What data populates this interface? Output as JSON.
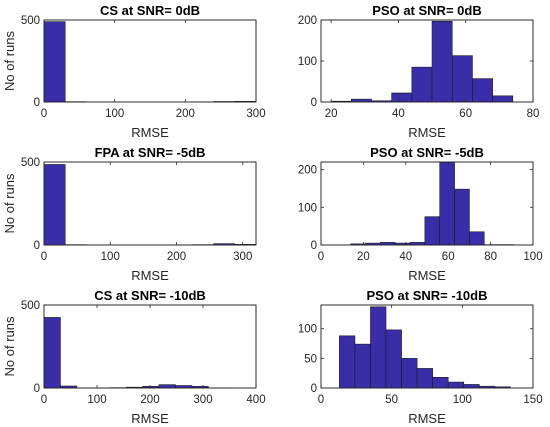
{
  "style": {
    "bar_color": "#3a2ea8"
  },
  "chart_data": [
    {
      "type": "bar",
      "title": "CS at SNR= 0dB",
      "xlabel": "RMSE",
      "ylabel": "No of runs",
      "xlim": [
        0,
        300
      ],
      "ylim": [
        0,
        500
      ],
      "xticks": [
        0,
        100,
        200,
        300
      ],
      "yticks": [
        0,
        500
      ],
      "bins": [
        {
          "x0": 0,
          "x1": 30,
          "value": 490
        },
        {
          "x0": 30,
          "x1": 60,
          "value": 2
        },
        {
          "x0": 60,
          "x1": 90,
          "value": 0
        },
        {
          "x0": 90,
          "x1": 120,
          "value": 0
        },
        {
          "x0": 120,
          "x1": 150,
          "value": 0
        },
        {
          "x0": 150,
          "x1": 180,
          "value": 0
        },
        {
          "x0": 180,
          "x1": 210,
          "value": 0
        },
        {
          "x0": 210,
          "x1": 240,
          "value": 1
        },
        {
          "x0": 240,
          "x1": 270,
          "value": 3
        },
        {
          "x0": 270,
          "x1": 300,
          "value": 4
        }
      ]
    },
    {
      "type": "bar",
      "title": "PSO at SNR= 0dB",
      "xlabel": "RMSE",
      "ylabel": "",
      "xlim": [
        17,
        80
      ],
      "ylim": [
        0,
        200
      ],
      "xticks": [
        20,
        40,
        60,
        80
      ],
      "yticks": [
        0,
        100,
        200
      ],
      "bins": [
        {
          "x0": 20,
          "x1": 26,
          "value": 2
        },
        {
          "x0": 26,
          "x1": 32,
          "value": 7
        },
        {
          "x0": 32,
          "x1": 38,
          "value": 3
        },
        {
          "x0": 38,
          "x1": 44,
          "value": 22
        },
        {
          "x0": 44,
          "x1": 50,
          "value": 85
        },
        {
          "x0": 50,
          "x1": 56,
          "value": 197
        },
        {
          "x0": 56,
          "x1": 62,
          "value": 113
        },
        {
          "x0": 62,
          "x1": 68,
          "value": 57
        },
        {
          "x0": 68,
          "x1": 74,
          "value": 15
        },
        {
          "x0": 74,
          "x1": 78,
          "value": 0
        }
      ]
    },
    {
      "type": "bar",
      "title": "FPA at SNR= -5dB",
      "xlabel": "RMSE",
      "ylabel": "No of runs",
      "xlim": [
        0,
        320
      ],
      "ylim": [
        0,
        500
      ],
      "xticks": [
        0,
        100,
        200,
        300
      ],
      "yticks": [
        0,
        500
      ],
      "bins": [
        {
          "x0": 0,
          "x1": 32,
          "value": 485
        },
        {
          "x0": 32,
          "x1": 64,
          "value": 2
        },
        {
          "x0": 64,
          "x1": 96,
          "value": 0
        },
        {
          "x0": 96,
          "x1": 128,
          "value": 0
        },
        {
          "x0": 128,
          "x1": 160,
          "value": 0
        },
        {
          "x0": 160,
          "x1": 192,
          "value": 0
        },
        {
          "x0": 192,
          "x1": 224,
          "value": 1
        },
        {
          "x0": 224,
          "x1": 256,
          "value": 2
        },
        {
          "x0": 256,
          "x1": 288,
          "value": 8
        },
        {
          "x0": 288,
          "x1": 320,
          "value": 4
        }
      ]
    },
    {
      "type": "bar",
      "title": "PSO at SNR= -5dB",
      "xlabel": "RMSE",
      "ylabel": "",
      "xlim": [
        0,
        100
      ],
      "ylim": [
        0,
        220
      ],
      "xticks": [
        0,
        20,
        40,
        60,
        80,
        100
      ],
      "yticks": [
        0,
        100,
        200
      ],
      "bins": [
        {
          "x0": 14,
          "x1": 21,
          "value": 3
        },
        {
          "x0": 21,
          "x1": 28,
          "value": 5
        },
        {
          "x0": 28,
          "x1": 35,
          "value": 7
        },
        {
          "x0": 35,
          "x1": 42,
          "value": 5
        },
        {
          "x0": 42,
          "x1": 49,
          "value": 7
        },
        {
          "x0": 49,
          "x1": 56,
          "value": 75
        },
        {
          "x0": 56,
          "x1": 63,
          "value": 220
        },
        {
          "x0": 63,
          "x1": 70,
          "value": 148
        },
        {
          "x0": 70,
          "x1": 77,
          "value": 35
        },
        {
          "x0": 77,
          "x1": 84,
          "value": 1
        },
        {
          "x0": 84,
          "x1": 91,
          "value": 1
        }
      ]
    },
    {
      "type": "bar",
      "title": "CS at SNR= -10dB",
      "xlabel": "RMSE",
      "ylabel": "No of runs",
      "xlim": [
        0,
        400
      ],
      "ylim": [
        0,
        500
      ],
      "xticks": [
        0,
        100,
        200,
        300,
        400
      ],
      "yticks": [
        0,
        500
      ],
      "bins": [
        {
          "x0": 0,
          "x1": 31,
          "value": 425
        },
        {
          "x0": 31,
          "x1": 62,
          "value": 12
        },
        {
          "x0": 62,
          "x1": 93,
          "value": 1
        },
        {
          "x0": 93,
          "x1": 124,
          "value": 1
        },
        {
          "x0": 124,
          "x1": 155,
          "value": 2
        },
        {
          "x0": 155,
          "x1": 186,
          "value": 5
        },
        {
          "x0": 186,
          "x1": 217,
          "value": 10
        },
        {
          "x0": 217,
          "x1": 248,
          "value": 20
        },
        {
          "x0": 248,
          "x1": 279,
          "value": 15
        },
        {
          "x0": 279,
          "x1": 310,
          "value": 10
        },
        {
          "x0": 310,
          "x1": 341,
          "value": 1
        }
      ]
    },
    {
      "type": "bar",
      "title": "PSO at SNR= -10dB",
      "xlabel": "RMSE",
      "ylabel": "",
      "xlim": [
        0,
        150
      ],
      "ylim": [
        0,
        140
      ],
      "xticks": [
        0,
        50,
        100,
        150
      ],
      "yticks": [
        0,
        50,
        100
      ],
      "bins": [
        {
          "x0": 13,
          "x1": 24,
          "value": 88
        },
        {
          "x0": 24,
          "x1": 35,
          "value": 74
        },
        {
          "x0": 35,
          "x1": 46,
          "value": 137
        },
        {
          "x0": 46,
          "x1": 57,
          "value": 98
        },
        {
          "x0": 57,
          "x1": 68,
          "value": 50
        },
        {
          "x0": 68,
          "x1": 79,
          "value": 33
        },
        {
          "x0": 79,
          "x1": 90,
          "value": 18
        },
        {
          "x0": 90,
          "x1": 101,
          "value": 10
        },
        {
          "x0": 101,
          "x1": 112,
          "value": 6
        },
        {
          "x0": 112,
          "x1": 123,
          "value": 3
        },
        {
          "x0": 123,
          "x1": 134,
          "value": 2
        }
      ]
    }
  ]
}
